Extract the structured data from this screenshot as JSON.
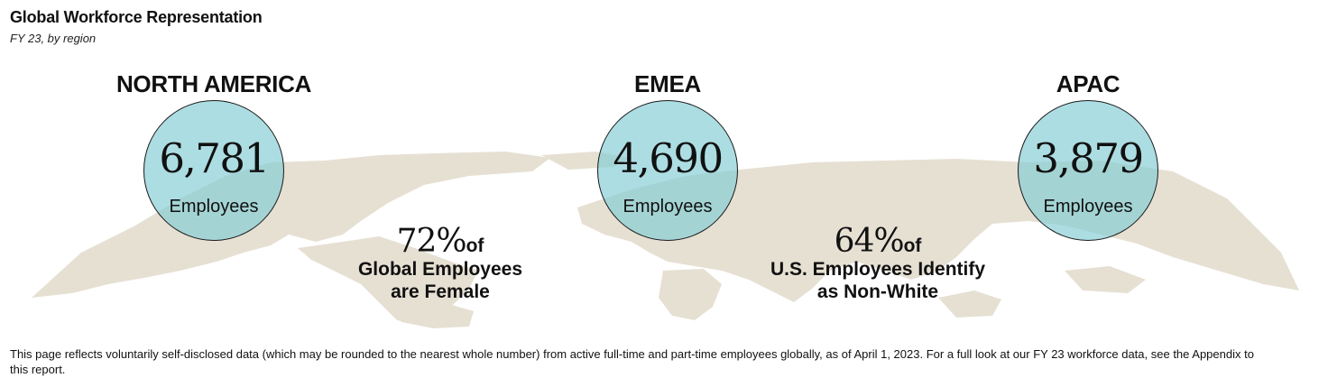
{
  "header": {
    "title": "Global Workforce Representation",
    "subtitle": "FY 23, by region"
  },
  "chart_data": {
    "type": "bubble-map",
    "title": "Global Workforce Representation",
    "subtitle": "FY 23, by region",
    "categories": [
      "NORTH AMERICA",
      "EMEA",
      "APAC"
    ],
    "values": [
      6781,
      4690,
      3879
    ],
    "value_labels": [
      "6,781",
      "4,690",
      "3,879"
    ],
    "unit_label": "Employees",
    "stats": [
      {
        "value": "72%",
        "of": "of",
        "line1": "Global Employees",
        "line2": "are Female"
      },
      {
        "value": "64%",
        "of": "of",
        "line1": "U.S. Employees Identify",
        "line2": "as Non-White"
      }
    ],
    "colors": {
      "bubble": "#85cdd4",
      "map": "#e6e0d3",
      "overlap": "#99b9a9"
    }
  },
  "footnote": "This page reflects voluntarily self-disclosed data (which may be rounded to the nearest whole number) from active full-time and part-time employees globally, as of April 1, 2023. For a full look at our FY 23 workforce data, see the Appendix to this report."
}
